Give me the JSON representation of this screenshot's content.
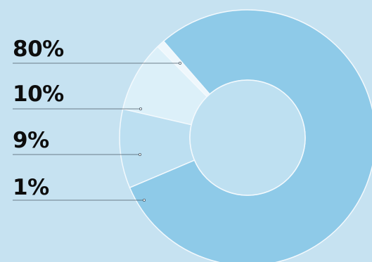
{
  "chart_data": {
    "type": "pie",
    "variant": "donut",
    "title": "",
    "categories": [
      "",
      "",
      "",
      ""
    ],
    "values": [
      80,
      10,
      9,
      1
    ],
    "labels": [
      "80%",
      "10%",
      "9%",
      "1%"
    ],
    "colors": [
      "#8ecae8",
      "#bcdff1",
      "#dcf0f9",
      "#eef7fc"
    ],
    "hole_color": "#bee0f1",
    "stroke_color": "#f3f9fd",
    "leader_color": "#4a5a66",
    "legend": "left"
  },
  "background": "#c6e2f1"
}
